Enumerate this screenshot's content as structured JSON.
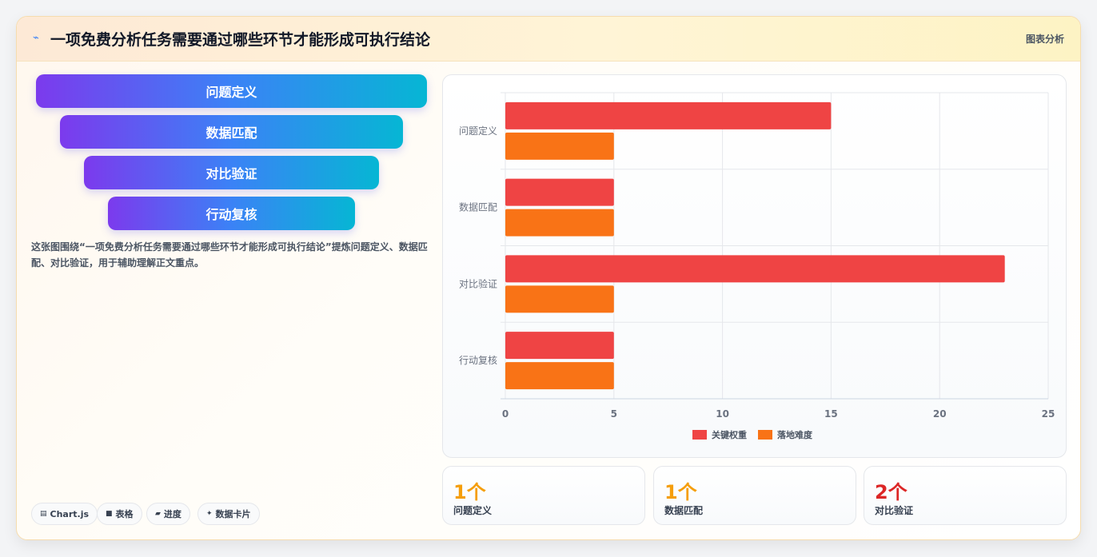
{
  "header": {
    "icon": "lightning-icon",
    "title": "一项免费分析任务需要通过哪些环节才能形成可执行结论",
    "tag": "图表分析"
  },
  "funnel": {
    "items": [
      "问题定义",
      "数据匹配",
      "对比验证",
      "行动复核"
    ]
  },
  "description": "这张图围绕“一项免费分析任务需要通过哪些环节才能形成可执行结论”提炼问题定义、数据匹配、对比验证，用于辅助理解正文重点。",
  "chips": [
    {
      "icon": "chart-icon",
      "label": "Chart.js"
    },
    {
      "icon": "table-icon",
      "label": "表格"
    },
    {
      "icon": "progress-icon",
      "label": "进度"
    },
    {
      "icon": "sparkle-icon",
      "label": "数据卡片"
    }
  ],
  "stats": [
    {
      "value": "1个",
      "label": "问题定义",
      "color": "#f59e0b"
    },
    {
      "value": "1个",
      "label": "数据匹配",
      "color": "#f59e0b"
    },
    {
      "value": "2个",
      "label": "对比验证",
      "color": "#dc2626"
    }
  ],
  "chart_data": {
    "type": "bar",
    "orientation": "horizontal",
    "categories": [
      "问题定义",
      "数据匹配",
      "对比验证",
      "行动复核"
    ],
    "series": [
      {
        "name": "关键权重",
        "values": [
          15,
          5,
          23,
          5
        ],
        "color": "#ef4444"
      },
      {
        "name": "落地难度",
        "values": [
          5,
          5,
          5,
          5
        ],
        "color": "#f97316"
      }
    ],
    "xlim": [
      0,
      25
    ],
    "xticks": [
      0,
      5,
      10,
      15,
      20,
      25
    ],
    "grid": true,
    "legend": "bottom"
  }
}
